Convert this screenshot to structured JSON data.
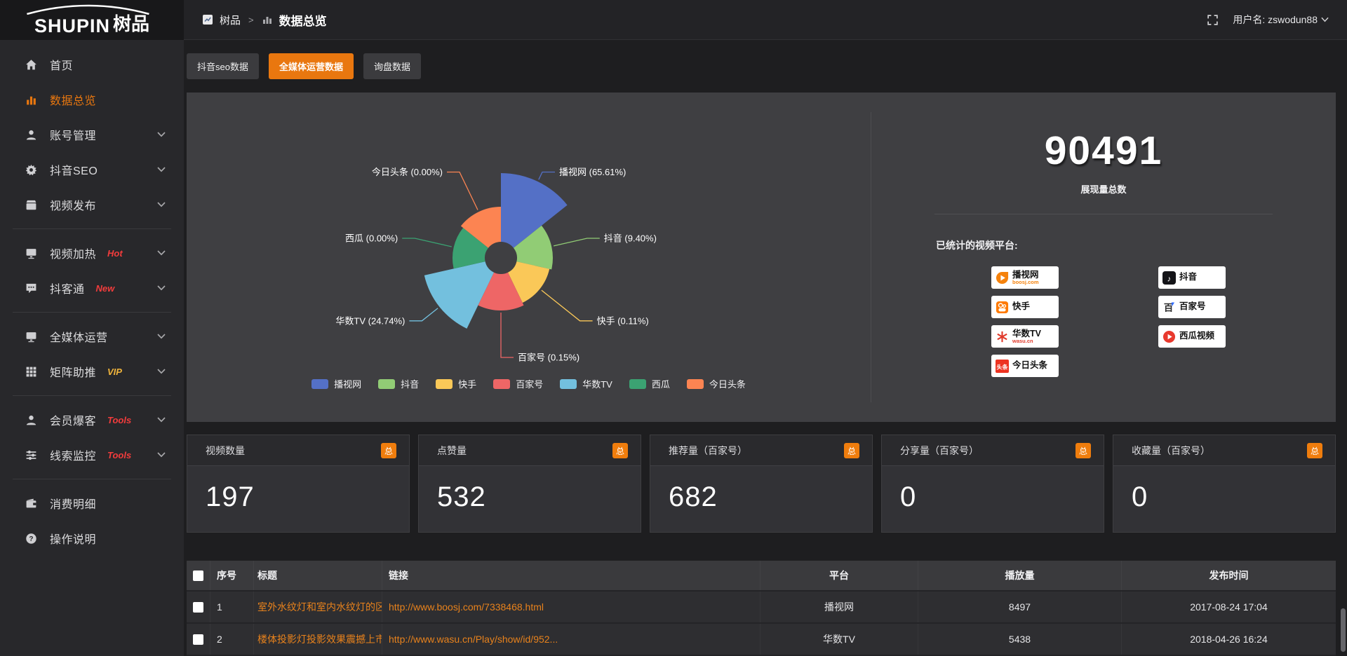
{
  "colors": {
    "accent_orange": "#e9770f",
    "link_orange": "#e8821c",
    "badge_red": "#f23c3c",
    "badge_gold": "#f0b43c",
    "total_badge_orange": "#ef7d0d"
  },
  "sidebar": {
    "brand": "SHUPIN",
    "brand_cn": "树品",
    "items": [
      {
        "label": "首页",
        "icon": "home-icon"
      },
      {
        "label": "数据总览",
        "icon": "bar-chart-icon",
        "active": true
      },
      {
        "label": "账号管理",
        "icon": "user-icon",
        "expandable": true
      },
      {
        "label": "抖音SEO",
        "icon": "gear-icon",
        "expandable": true
      },
      {
        "label": "视频发布",
        "icon": "clapper-icon",
        "expandable": true,
        "divider_after": true
      },
      {
        "label": "视频加热",
        "icon": "screen-icon",
        "badge": "Hot",
        "badge_style": "red",
        "expandable": true
      },
      {
        "label": "抖客通",
        "icon": "chat-icon",
        "badge": "New",
        "badge_style": "red",
        "expandable": true,
        "divider_after": true
      },
      {
        "label": "全媒体运营",
        "icon": "monitor-icon",
        "expandable": true
      },
      {
        "label": "矩阵助推",
        "icon": "grid-icon",
        "badge": "VIP",
        "badge_style": "gold",
        "expandable": true,
        "divider_after": true
      },
      {
        "label": "会员爆客",
        "icon": "member-icon",
        "badge": "Tools",
        "badge_style": "red",
        "expandable": true
      },
      {
        "label": "线索监控",
        "icon": "sliders-icon",
        "badge": "Tools",
        "badge_style": "red",
        "expandable": true,
        "divider_after": true
      },
      {
        "label": "消费明细",
        "icon": "wallet-icon"
      },
      {
        "label": "操作说明",
        "icon": "question-icon"
      }
    ]
  },
  "topbar": {
    "breadcrumb_root": "树品",
    "breadcrumb_separator": ">",
    "breadcrumb_current": "数据总览",
    "user_label": "用户名: zswodun88"
  },
  "tabs": [
    {
      "label": "抖音seo数据",
      "active": false
    },
    {
      "label": "全媒体运营数据",
      "active": true
    },
    {
      "label": "询盘数据",
      "active": false
    }
  ],
  "chart_data": {
    "type": "pie",
    "variant": "nightingale-rose-donut",
    "categories": [
      "播视网",
      "抖音",
      "快手",
      "百家号",
      "华数TV",
      "西瓜",
      "今日头条"
    ],
    "values_percent": [
      65.61,
      9.4,
      0.11,
      0.15,
      24.74,
      0.0,
      0.0
    ],
    "labels": [
      "播视网 (65.61%)",
      "抖音 (9.40%)",
      "快手 (0.11%)",
      "百家号 (0.15%)",
      "华数TV (24.74%)",
      "西瓜 (0.00%)",
      "今日头条 (0.00%)"
    ],
    "colors": [
      "#5470c6",
      "#91cc75",
      "#fac858",
      "#ee6666",
      "#73c0de",
      "#3ba272",
      "#fc8452"
    ],
    "legend": [
      "播视网",
      "抖音",
      "快手",
      "百家号",
      "华数TV",
      "西瓜",
      "今日头条"
    ],
    "legend_position": "bottom",
    "equal_angles": true,
    "start_at_12_oclock": true,
    "inner_radius_px": 23,
    "slice_outer_radius_px": [
      121,
      74,
      71,
      75,
      112,
      69,
      73
    ],
    "label_elbow_radius_px": [
      136,
      126,
      144,
      142,
      144,
      126,
      136
    ]
  },
  "summary": {
    "total_value": "90491",
    "total_label": "展现量总数",
    "platforms_label": "已统计的视频平台:",
    "platform_columns": [
      [
        {
          "name": "播视网",
          "sub": "boosj.com",
          "sub_color": "#f5820c",
          "logo": "boosj-logo"
        },
        {
          "name": "快手",
          "logo": "kuaishou-logo"
        },
        {
          "name": "华数TV",
          "sub": "wasu.cn",
          "sub_color": "#e0392a",
          "logo": "wasu-logo"
        },
        {
          "name": "今日头条",
          "logo": "toutiao-logo"
        }
      ],
      [
        {
          "name": "抖音",
          "logo": "douyin-logo"
        },
        {
          "name": "百家号",
          "logo": "baijiahao-logo"
        },
        {
          "name": "西瓜视频",
          "logo": "xigua-logo"
        }
      ]
    ]
  },
  "stat_cards": [
    {
      "title": "视频数量",
      "badge": "总",
      "value": "197"
    },
    {
      "title": "点赞量",
      "badge": "总",
      "value": "532"
    },
    {
      "title": "推荐量（百家号）",
      "badge": "总",
      "value": "682"
    },
    {
      "title": "分享量（百家号）",
      "badge": "总",
      "value": "0"
    },
    {
      "title": "收藏量（百家号）",
      "badge": "总",
      "value": "0"
    }
  ],
  "table": {
    "columns": [
      "序号",
      "标题",
      "链接",
      "平台",
      "播放量",
      "发布时间"
    ],
    "rows": [
      {
        "no": "1",
        "title": "室外水纹灯和室内水纹灯的区别和简介",
        "link": "http://www.boosj.com/7338468.html",
        "platform": "播视网",
        "plays": "8497",
        "time": "2017-08-24 17:04"
      },
      {
        "no": "2",
        "title": "楼体投影灯投影效果震撼上市",
        "link": "http://www.wasu.cn/Play/show/id/952...",
        "platform": "华数TV",
        "plays": "5438",
        "time": "2018-04-26 16:24"
      }
    ]
  }
}
